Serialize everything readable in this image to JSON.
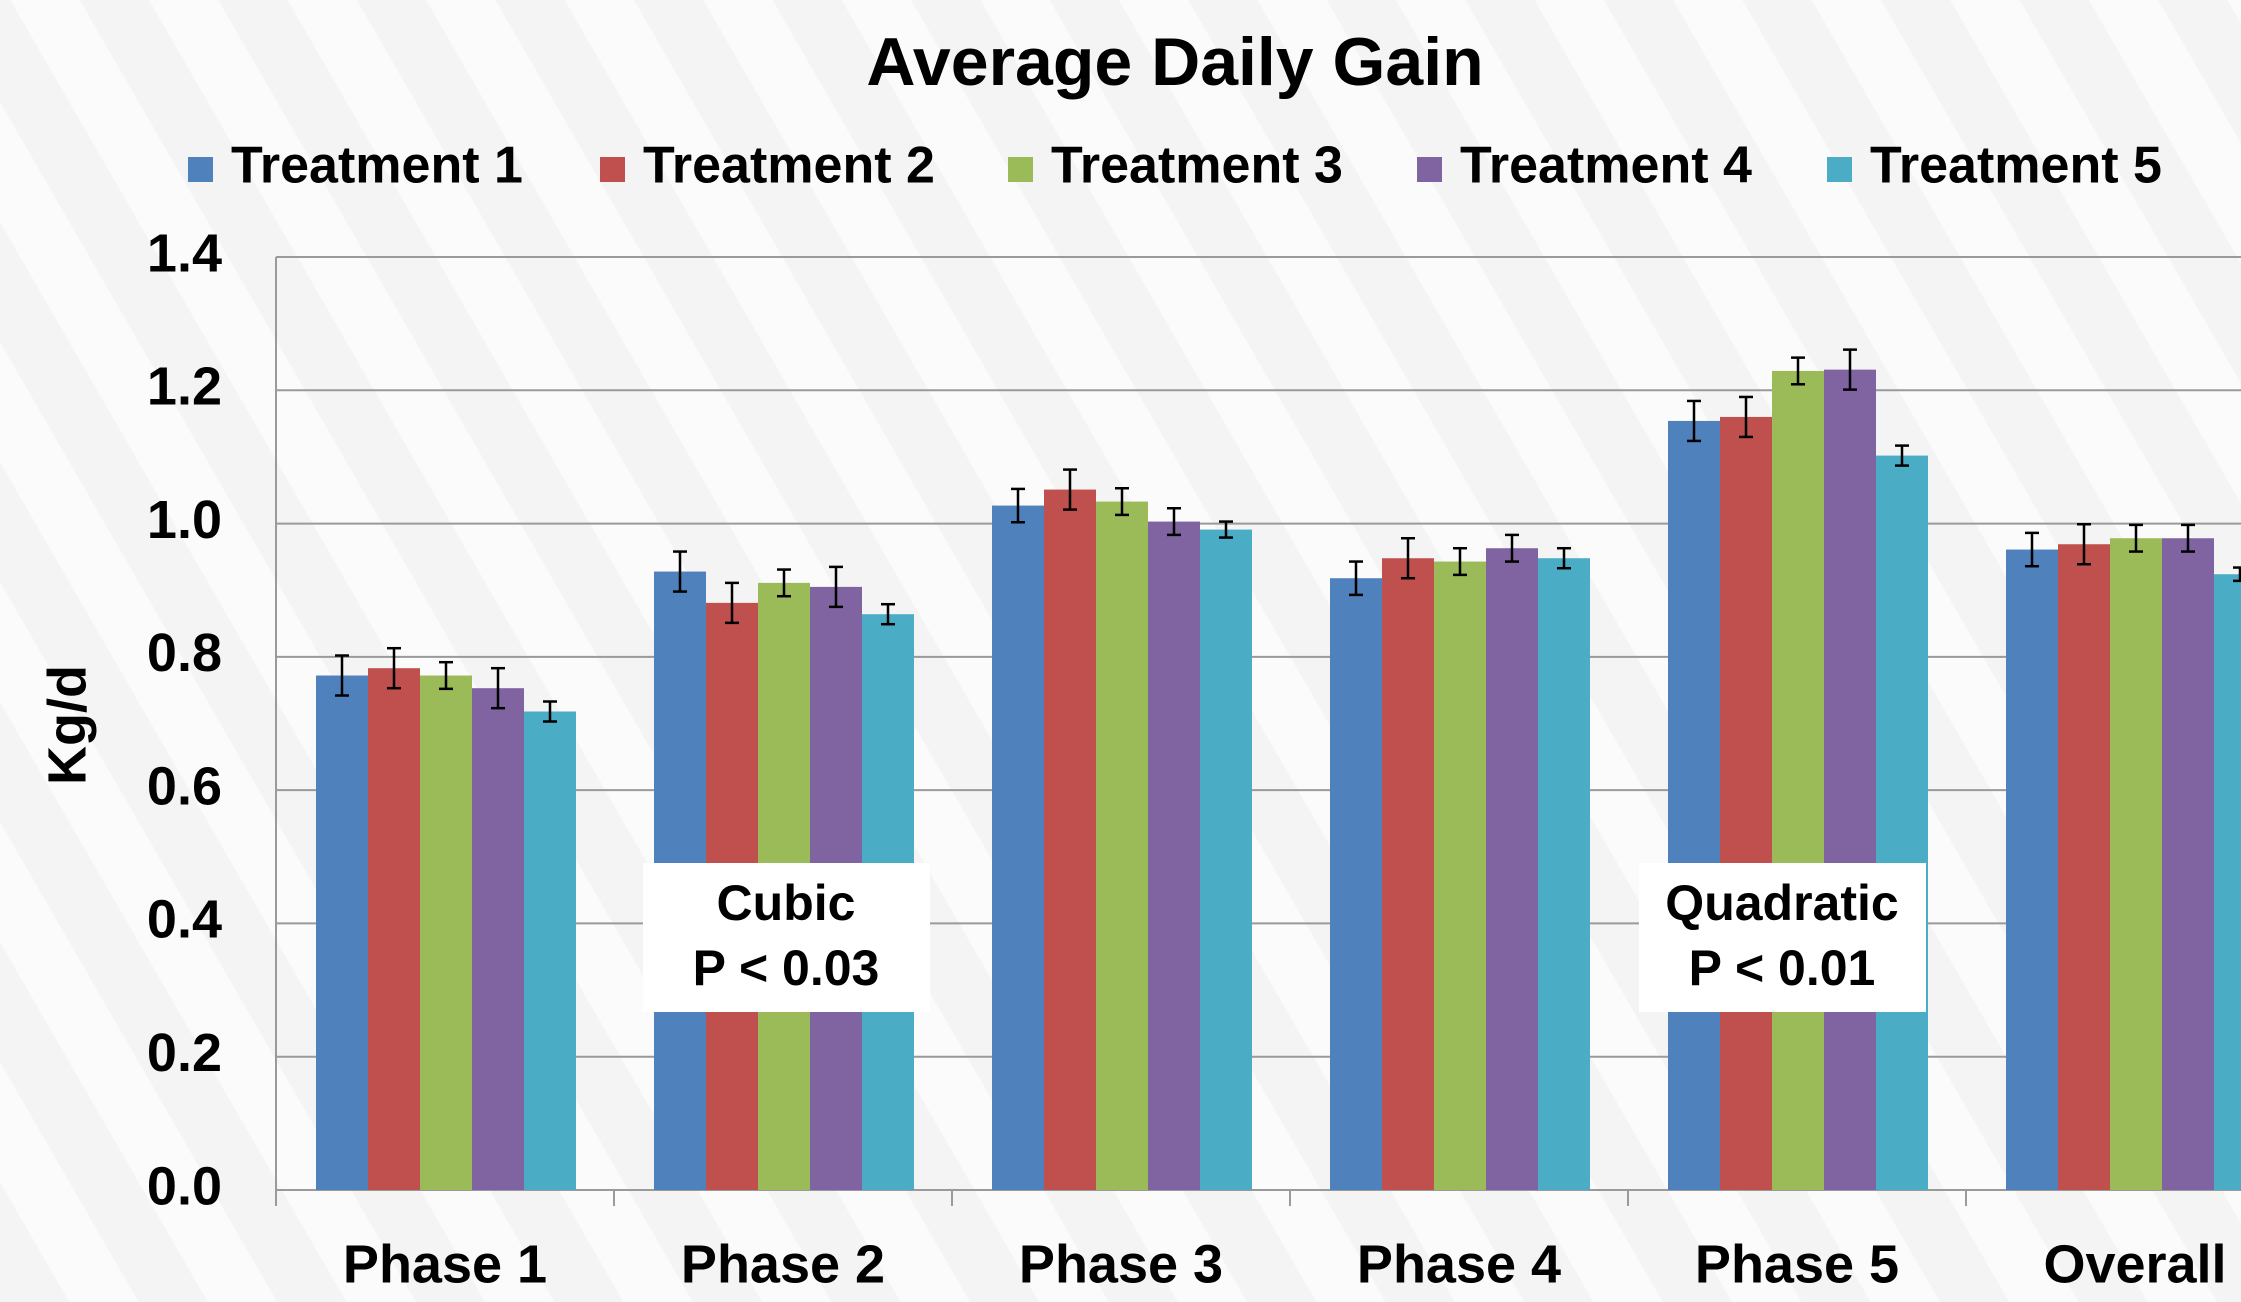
{
  "chart_data": {
    "type": "bar",
    "title": "Average Daily Gain",
    "y_label": "Kg/d",
    "categories": [
      "Phase 1",
      "Phase 2",
      "Phase 3",
      "Phase 4",
      "Phase 5",
      "Overall"
    ],
    "series": [
      {
        "name": "Treatment 1",
        "color": "#4f81bd",
        "values": [
          0.772,
          0.928,
          1.027,
          0.918,
          1.154,
          0.961
        ],
        "errors": [
          0.03,
          0.03,
          0.025,
          0.025,
          0.03,
          0.025
        ]
      },
      {
        "name": "Treatment 2",
        "color": "#c0504d",
        "values": [
          0.783,
          0.881,
          1.051,
          0.948,
          1.16,
          0.969
        ],
        "errors": [
          0.03,
          0.03,
          0.03,
          0.03,
          0.03,
          0.03
        ]
      },
      {
        "name": "Treatment 3",
        "color": "#9bbb59",
        "values": [
          0.772,
          0.911,
          1.033,
          0.943,
          1.229,
          0.978
        ],
        "errors": [
          0.02,
          0.02,
          0.02,
          0.02,
          0.02,
          0.02
        ]
      },
      {
        "name": "Treatment 4",
        "color": "#8064a2",
        "values": [
          0.753,
          0.905,
          1.003,
          0.963,
          1.231,
          0.978
        ],
        "errors": [
          0.03,
          0.03,
          0.02,
          0.02,
          0.03,
          0.02
        ]
      },
      {
        "name": "Treatment 5",
        "color": "#4bacc6",
        "values": [
          0.718,
          0.864,
          0.991,
          0.948,
          1.102,
          0.924
        ],
        "errors": [
          0.015,
          0.015,
          0.012,
          0.015,
          0.015,
          0.01
        ]
      }
    ],
    "ylim": [
      0,
      1.4
    ],
    "yticks": [
      {
        "value": 0,
        "label": "0.0"
      },
      0.2,
      0.4,
      0.6,
      0.8,
      {
        "value": 1,
        "label": "1.0"
      },
      1.2,
      1.4
    ],
    "grid": true,
    "annotations": [
      {
        "lines": [
          "Cubic",
          "P < 0.03"
        ]
      },
      {
        "lines": [
          "Quadratic",
          "P < 0.01"
        ]
      }
    ]
  }
}
